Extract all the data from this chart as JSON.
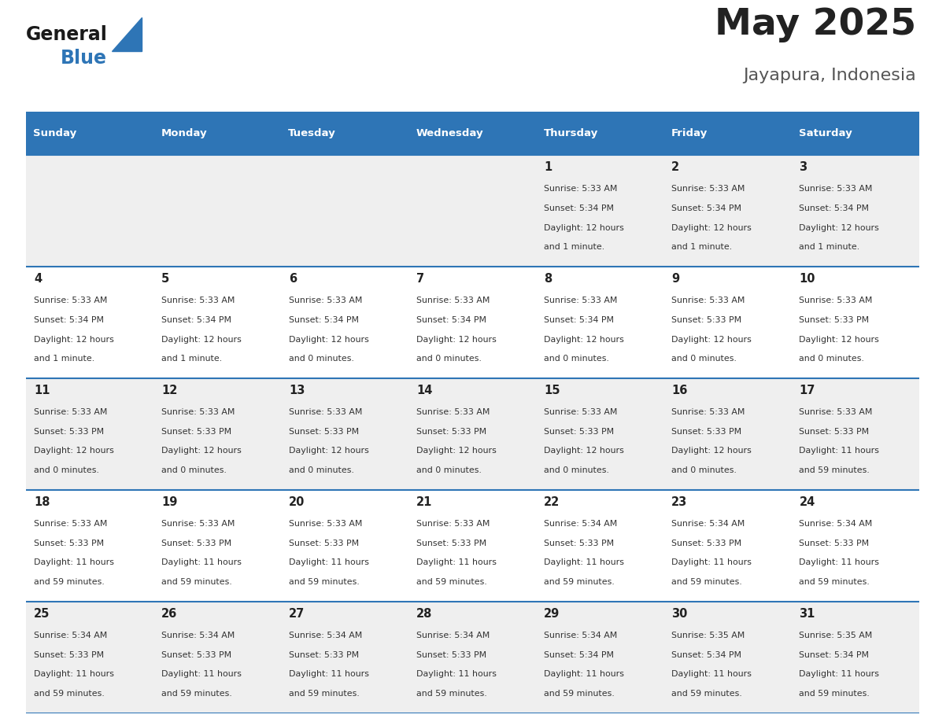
{
  "title": "May 2025",
  "subtitle": "Jayapura, Indonesia",
  "header_bg_color": "#2E75B6",
  "header_text_color": "#FFFFFF",
  "day_names": [
    "Sunday",
    "Monday",
    "Tuesday",
    "Wednesday",
    "Thursday",
    "Friday",
    "Saturday"
  ],
  "row_bg_even": "#EFEFEF",
  "row_bg_odd": "#FFFFFF",
  "cell_text_color": "#333333",
  "day_num_color": "#222222",
  "title_color": "#222222",
  "subtitle_color": "#555555",
  "divider_color": "#2E75B6",
  "calendar": [
    [
      null,
      null,
      null,
      null,
      {
        "day": 1,
        "sunrise": "5:33 AM",
        "sunset": "5:34 PM",
        "dl1": "12 hours",
        "dl2": "and 1 minute."
      },
      {
        "day": 2,
        "sunrise": "5:33 AM",
        "sunset": "5:34 PM",
        "dl1": "12 hours",
        "dl2": "and 1 minute."
      },
      {
        "day": 3,
        "sunrise": "5:33 AM",
        "sunset": "5:34 PM",
        "dl1": "12 hours",
        "dl2": "and 1 minute."
      }
    ],
    [
      {
        "day": 4,
        "sunrise": "5:33 AM",
        "sunset": "5:34 PM",
        "dl1": "12 hours",
        "dl2": "and 1 minute."
      },
      {
        "day": 5,
        "sunrise": "5:33 AM",
        "sunset": "5:34 PM",
        "dl1": "12 hours",
        "dl2": "and 1 minute."
      },
      {
        "day": 6,
        "sunrise": "5:33 AM",
        "sunset": "5:34 PM",
        "dl1": "12 hours",
        "dl2": "and 0 minutes."
      },
      {
        "day": 7,
        "sunrise": "5:33 AM",
        "sunset": "5:34 PM",
        "dl1": "12 hours",
        "dl2": "and 0 minutes."
      },
      {
        "day": 8,
        "sunrise": "5:33 AM",
        "sunset": "5:34 PM",
        "dl1": "12 hours",
        "dl2": "and 0 minutes."
      },
      {
        "day": 9,
        "sunrise": "5:33 AM",
        "sunset": "5:33 PM",
        "dl1": "12 hours",
        "dl2": "and 0 minutes."
      },
      {
        "day": 10,
        "sunrise": "5:33 AM",
        "sunset": "5:33 PM",
        "dl1": "12 hours",
        "dl2": "and 0 minutes."
      }
    ],
    [
      {
        "day": 11,
        "sunrise": "5:33 AM",
        "sunset": "5:33 PM",
        "dl1": "12 hours",
        "dl2": "and 0 minutes."
      },
      {
        "day": 12,
        "sunrise": "5:33 AM",
        "sunset": "5:33 PM",
        "dl1": "12 hours",
        "dl2": "and 0 minutes."
      },
      {
        "day": 13,
        "sunrise": "5:33 AM",
        "sunset": "5:33 PM",
        "dl1": "12 hours",
        "dl2": "and 0 minutes."
      },
      {
        "day": 14,
        "sunrise": "5:33 AM",
        "sunset": "5:33 PM",
        "dl1": "12 hours",
        "dl2": "and 0 minutes."
      },
      {
        "day": 15,
        "sunrise": "5:33 AM",
        "sunset": "5:33 PM",
        "dl1": "12 hours",
        "dl2": "and 0 minutes."
      },
      {
        "day": 16,
        "sunrise": "5:33 AM",
        "sunset": "5:33 PM",
        "dl1": "12 hours",
        "dl2": "and 0 minutes."
      },
      {
        "day": 17,
        "sunrise": "5:33 AM",
        "sunset": "5:33 PM",
        "dl1": "11 hours",
        "dl2": "and 59 minutes."
      }
    ],
    [
      {
        "day": 18,
        "sunrise": "5:33 AM",
        "sunset": "5:33 PM",
        "dl1": "11 hours",
        "dl2": "and 59 minutes."
      },
      {
        "day": 19,
        "sunrise": "5:33 AM",
        "sunset": "5:33 PM",
        "dl1": "11 hours",
        "dl2": "and 59 minutes."
      },
      {
        "day": 20,
        "sunrise": "5:33 AM",
        "sunset": "5:33 PM",
        "dl1": "11 hours",
        "dl2": "and 59 minutes."
      },
      {
        "day": 21,
        "sunrise": "5:33 AM",
        "sunset": "5:33 PM",
        "dl1": "11 hours",
        "dl2": "and 59 minutes."
      },
      {
        "day": 22,
        "sunrise": "5:34 AM",
        "sunset": "5:33 PM",
        "dl1": "11 hours",
        "dl2": "and 59 minutes."
      },
      {
        "day": 23,
        "sunrise": "5:34 AM",
        "sunset": "5:33 PM",
        "dl1": "11 hours",
        "dl2": "and 59 minutes."
      },
      {
        "day": 24,
        "sunrise": "5:34 AM",
        "sunset": "5:33 PM",
        "dl1": "11 hours",
        "dl2": "and 59 minutes."
      }
    ],
    [
      {
        "day": 25,
        "sunrise": "5:34 AM",
        "sunset": "5:33 PM",
        "dl1": "11 hours",
        "dl2": "and 59 minutes."
      },
      {
        "day": 26,
        "sunrise": "5:34 AM",
        "sunset": "5:33 PM",
        "dl1": "11 hours",
        "dl2": "and 59 minutes."
      },
      {
        "day": 27,
        "sunrise": "5:34 AM",
        "sunset": "5:33 PM",
        "dl1": "11 hours",
        "dl2": "and 59 minutes."
      },
      {
        "day": 28,
        "sunrise": "5:34 AM",
        "sunset": "5:33 PM",
        "dl1": "11 hours",
        "dl2": "and 59 minutes."
      },
      {
        "day": 29,
        "sunrise": "5:34 AM",
        "sunset": "5:34 PM",
        "dl1": "11 hours",
        "dl2": "and 59 minutes."
      },
      {
        "day": 30,
        "sunrise": "5:35 AM",
        "sunset": "5:34 PM",
        "dl1": "11 hours",
        "dl2": "and 59 minutes."
      },
      {
        "day": 31,
        "sunrise": "5:35 AM",
        "sunset": "5:34 PM",
        "dl1": "11 hours",
        "dl2": "and 59 minutes."
      }
    ]
  ],
  "logo_text_general": "General",
  "logo_text_blue": "Blue",
  "logo_color_general": "#1a1a1a",
  "logo_color_blue": "#2E75B6",
  "logo_triangle_color": "#2E75B6",
  "figsize": [
    11.88,
    9.18
  ],
  "dpi": 100
}
